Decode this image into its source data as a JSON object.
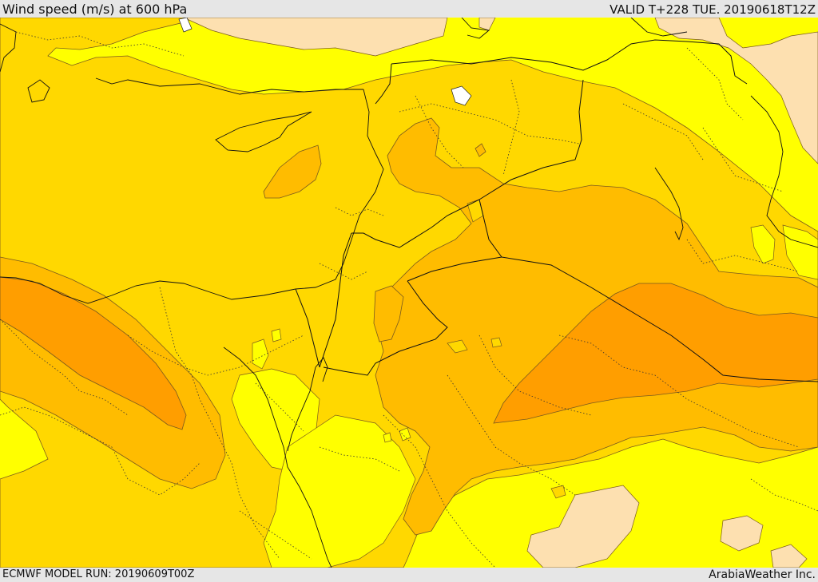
{
  "header": {
    "title": "Wind speed (m/s) at 600 hPa",
    "valid": "VALID T+228 TUE. 20190618T12Z"
  },
  "footer": {
    "model_run": "ECMWF MODEL RUN: 20190609T00Z",
    "credit": "ArabiaWeather Inc."
  },
  "map": {
    "colors": {
      "band_lowest": "#fde0b0",
      "band_low": "#ffff00",
      "band_mid": "#ffd800",
      "band_high": "#ffbc00",
      "band_highest": "#ff9e00",
      "contour_line": "#7a5a1e",
      "border_line": "#111111"
    }
  }
}
